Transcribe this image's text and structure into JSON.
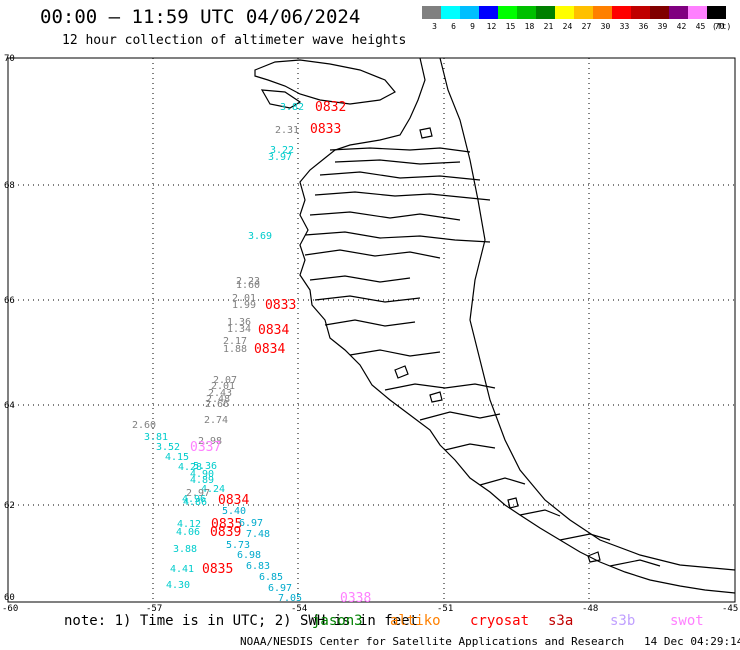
{
  "title": "00:00 – 11:59 UTC 04/06/2024",
  "subtitle": "12 hour collection of altimeter wave heights",
  "colorbar": {
    "colors": [
      "#808080",
      "#00ffff",
      "#00bfff",
      "#0000ff",
      "#00ff00",
      "#00c000",
      "#008000",
      "#ffff00",
      "#ffc000",
      "#ff8000",
      "#ff0000",
      "#c00000",
      "#800000",
      "#800080",
      "#ff80ff",
      "#000000"
    ],
    "labels": [
      "3",
      "6",
      "9",
      "12",
      "15",
      "18",
      "21",
      "24",
      "27",
      "30",
      "33",
      "36",
      "39",
      "42",
      "45",
      "70"
    ],
    "unit": "(ft)"
  },
  "axes": {
    "lat_labels": [
      "70",
      "68",
      "66",
      "64",
      "62",
      "60"
    ],
    "lon_labels": [
      "-60",
      "-57",
      "-54",
      "-51",
      "-48",
      "-45"
    ]
  },
  "observations": [
    {
      "text": "3.82",
      "color": "#00cccc"
    },
    {
      "text": "0832",
      "color": "#ff0000"
    },
    {
      "text": "2.31",
      "color": "#808080"
    },
    {
      "text": "0833",
      "color": "#ff0000"
    },
    {
      "text": "3.22",
      "color": "#00cccc"
    },
    {
      "text": "3.97",
      "color": "#00cccc"
    },
    {
      "text": "3.69",
      "color": "#00cccc"
    },
    {
      "text": "2.23",
      "color": "#808080"
    },
    {
      "text": "1.60",
      "color": "#808080"
    },
    {
      "text": "2.01",
      "color": "#808080"
    },
    {
      "text": "1.99",
      "color": "#808080"
    },
    {
      "text": "0833",
      "color": "#ff0000"
    },
    {
      "text": "1.36",
      "color": "#808080"
    },
    {
      "text": "1.34",
      "color": "#808080"
    },
    {
      "text": "0834",
      "color": "#ff0000"
    },
    {
      "text": "2.17",
      "color": "#808080"
    },
    {
      "text": "1.88",
      "color": "#808080"
    },
    {
      "text": "0834",
      "color": "#ff0000"
    },
    {
      "text": "2.07",
      "color": "#808080"
    },
    {
      "text": "2.01",
      "color": "#808080"
    },
    {
      "text": "2.43",
      "color": "#808080"
    },
    {
      "text": "2.48",
      "color": "#808080"
    },
    {
      "text": "2.66",
      "color": "#808080"
    },
    {
      "text": "2.74",
      "color": "#808080"
    },
    {
      "text": "2.60",
      "color": "#808080"
    },
    {
      "text": "3.81",
      "color": "#00cccc"
    },
    {
      "text": "2.98",
      "color": "#808080"
    },
    {
      "text": "3.52",
      "color": "#00cccc"
    },
    {
      "text": "0337",
      "color": "#ff80ff"
    },
    {
      "text": "4.15",
      "color": "#00cccc"
    },
    {
      "text": "4.28",
      "color": "#00cccc"
    },
    {
      "text": "5.36",
      "color": "#00cccc"
    },
    {
      "text": "4.90",
      "color": "#00cccc"
    },
    {
      "text": "4.89",
      "color": "#00cccc"
    },
    {
      "text": "4.24",
      "color": "#00cccc"
    },
    {
      "text": "2.97",
      "color": "#808080"
    },
    {
      "text": "4.96",
      "color": "#00cccc"
    },
    {
      "text": "4.86",
      "color": "#00cccc"
    },
    {
      "text": "0834",
      "color": "#ff0000"
    },
    {
      "text": "5.40",
      "color": "#00aacc"
    },
    {
      "text": "4.12",
      "color": "#00cccc"
    },
    {
      "text": "0835",
      "color": "#ff0000"
    },
    {
      "text": "6.97",
      "color": "#00aacc"
    },
    {
      "text": "4.06",
      "color": "#00cccc"
    },
    {
      "text": "0839",
      "color": "#ff0000"
    },
    {
      "text": "7.48",
      "color": "#00aacc"
    },
    {
      "text": "5.73",
      "color": "#00aacc"
    },
    {
      "text": "3.88",
      "color": "#00cccc"
    },
    {
      "text": "6.98",
      "color": "#00aacc"
    },
    {
      "text": "4.41",
      "color": "#00cccc"
    },
    {
      "text": "0835",
      "color": "#ff0000"
    },
    {
      "text": "6.83",
      "color": "#00aacc"
    },
    {
      "text": "6.85",
      "color": "#00aacc"
    },
    {
      "text": "4.30",
      "color": "#00cccc"
    },
    {
      "text": "6.97",
      "color": "#00aacc"
    },
    {
      "text": "7.05",
      "color": "#00aacc"
    },
    {
      "text": "0338",
      "color": "#ff80ff"
    }
  ],
  "footer": {
    "note": "note: 1) Time is in UTC; 2) SWH is in feet",
    "missions": [
      {
        "name": "jason3",
        "color": "#008000"
      },
      {
        "name": "altiko",
        "color": "#ff8000"
      },
      {
        "name": "cryosat",
        "color": "#ff0000"
      },
      {
        "name": "s3a",
        "color": "#c00000"
      },
      {
        "name": "s3b",
        "color": "#c0a0ff"
      },
      {
        "name": "swot",
        "color": "#ff80ff"
      }
    ],
    "credit": "NOAA/NESDIS Center for Satellite Applications and Research   14 Dec 04:29:14 UTC 2024"
  }
}
